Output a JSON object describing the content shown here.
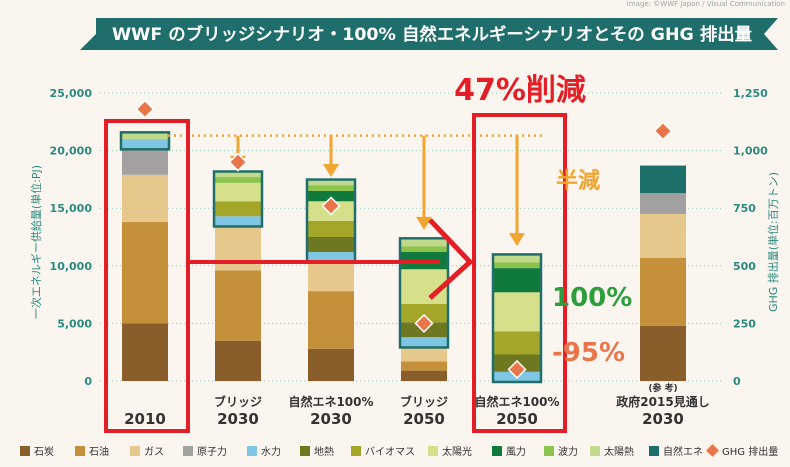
{
  "header": {
    "title": "WWF のブリッジシナリオ・100% 自然エネルギーシナリオとその GHG 排出量",
    "credit": "Image: ©WWF Japan / Visual Communication"
  },
  "annotations": {
    "reduction_47": "47%削減",
    "half": "半減",
    "pct100": "100%",
    "pct95": "-95%"
  },
  "chart_data": {
    "type": "bar",
    "stacked": true,
    "ylabel": "一次エネルギー供給量(単位:PJ)",
    "ylabel_right": "GHG 排出量(単位:百万トン)",
    "ylim": [
      0,
      25000
    ],
    "ylim_right": [
      0,
      1250
    ],
    "yticks": [
      "0",
      "5,000",
      "10,000",
      "15,000",
      "20,000",
      "25,000"
    ],
    "yticks_right": [
      "0",
      "250",
      "500",
      "750",
      "1,000",
      "1,250"
    ],
    "categories": [
      {
        "line1": "",
        "line2": "2010",
        "note": ""
      },
      {
        "line1": "ブリッジ",
        "line2": "2030",
        "note": ""
      },
      {
        "line1": "自然エネ100%",
        "line2": "2030",
        "note": ""
      },
      {
        "line1": "ブリッジ",
        "line2": "2050",
        "note": ""
      },
      {
        "line1": "自然エネ100%",
        "line2": "2050",
        "note": ""
      },
      {
        "line1": "政府2015見通し",
        "line2": "2030",
        "note": "(参 考)"
      }
    ],
    "series": [
      {
        "name": "石炭",
        "color": "#8a5e2a",
        "values": [
          5000,
          3500,
          2800,
          900,
          0,
          4800
        ]
      },
      {
        "name": "石油",
        "color": "#c4913a",
        "values": [
          8800,
          6100,
          5000,
          800,
          0,
          5900
        ]
      },
      {
        "name": "ガス",
        "color": "#e6c78c",
        "values": [
          4100,
          3900,
          2600,
          1300,
          0,
          3800
        ]
      },
      {
        "name": "原子力",
        "color": "#a2a0a0",
        "values": [
          2300,
          0,
          0,
          0,
          0,
          1800
        ]
      },
      {
        "name": "水力",
        "color": "#7ec6e4",
        "values": [
          800,
          800,
          800,
          800,
          800,
          0
        ]
      },
      {
        "name": "地熱",
        "color": "#6e7820",
        "values": [
          0,
          0,
          1300,
          1300,
          1500,
          0
        ]
      },
      {
        "name": "バイオマス",
        "color": "#a3a628",
        "values": [
          0,
          1300,
          1400,
          1600,
          2000,
          0
        ]
      },
      {
        "name": "太陽光",
        "color": "#d6e08a",
        "values": [
          0,
          1600,
          1700,
          3000,
          3400,
          0
        ]
      },
      {
        "name": "風力",
        "color": "#107a3d",
        "values": [
          0,
          0,
          900,
          1500,
          2100,
          0
        ]
      },
      {
        "name": "波力",
        "color": "#8cc34a",
        "values": [
          0,
          500,
          500,
          500,
          500,
          0
        ]
      },
      {
        "name": "太陽熱",
        "color": "#c1d98a",
        "values": [
          500,
          400,
          400,
          600,
          600,
          0
        ]
      },
      {
        "name": "自然エネ",
        "color": "#1d6f6a",
        "values": [
          0,
          0,
          0,
          0,
          0,
          2400
        ]
      }
    ],
    "ghg": {
      "name": "GHG 排出量",
      "color": "#e8764a",
      "values": [
        1180,
        950,
        760,
        250,
        50,
        1085
      ]
    },
    "reference_line": 21300,
    "arrows": [
      {
        "cat": 1,
        "from": 21300,
        "to": 18500
      },
      {
        "cat": 2,
        "from": 21300,
        "to": 17800
      },
      {
        "cat": 3,
        "from": 21300,
        "to": 13200
      },
      {
        "cat": 4,
        "from": 21300,
        "to": 11800
      }
    ]
  }
}
